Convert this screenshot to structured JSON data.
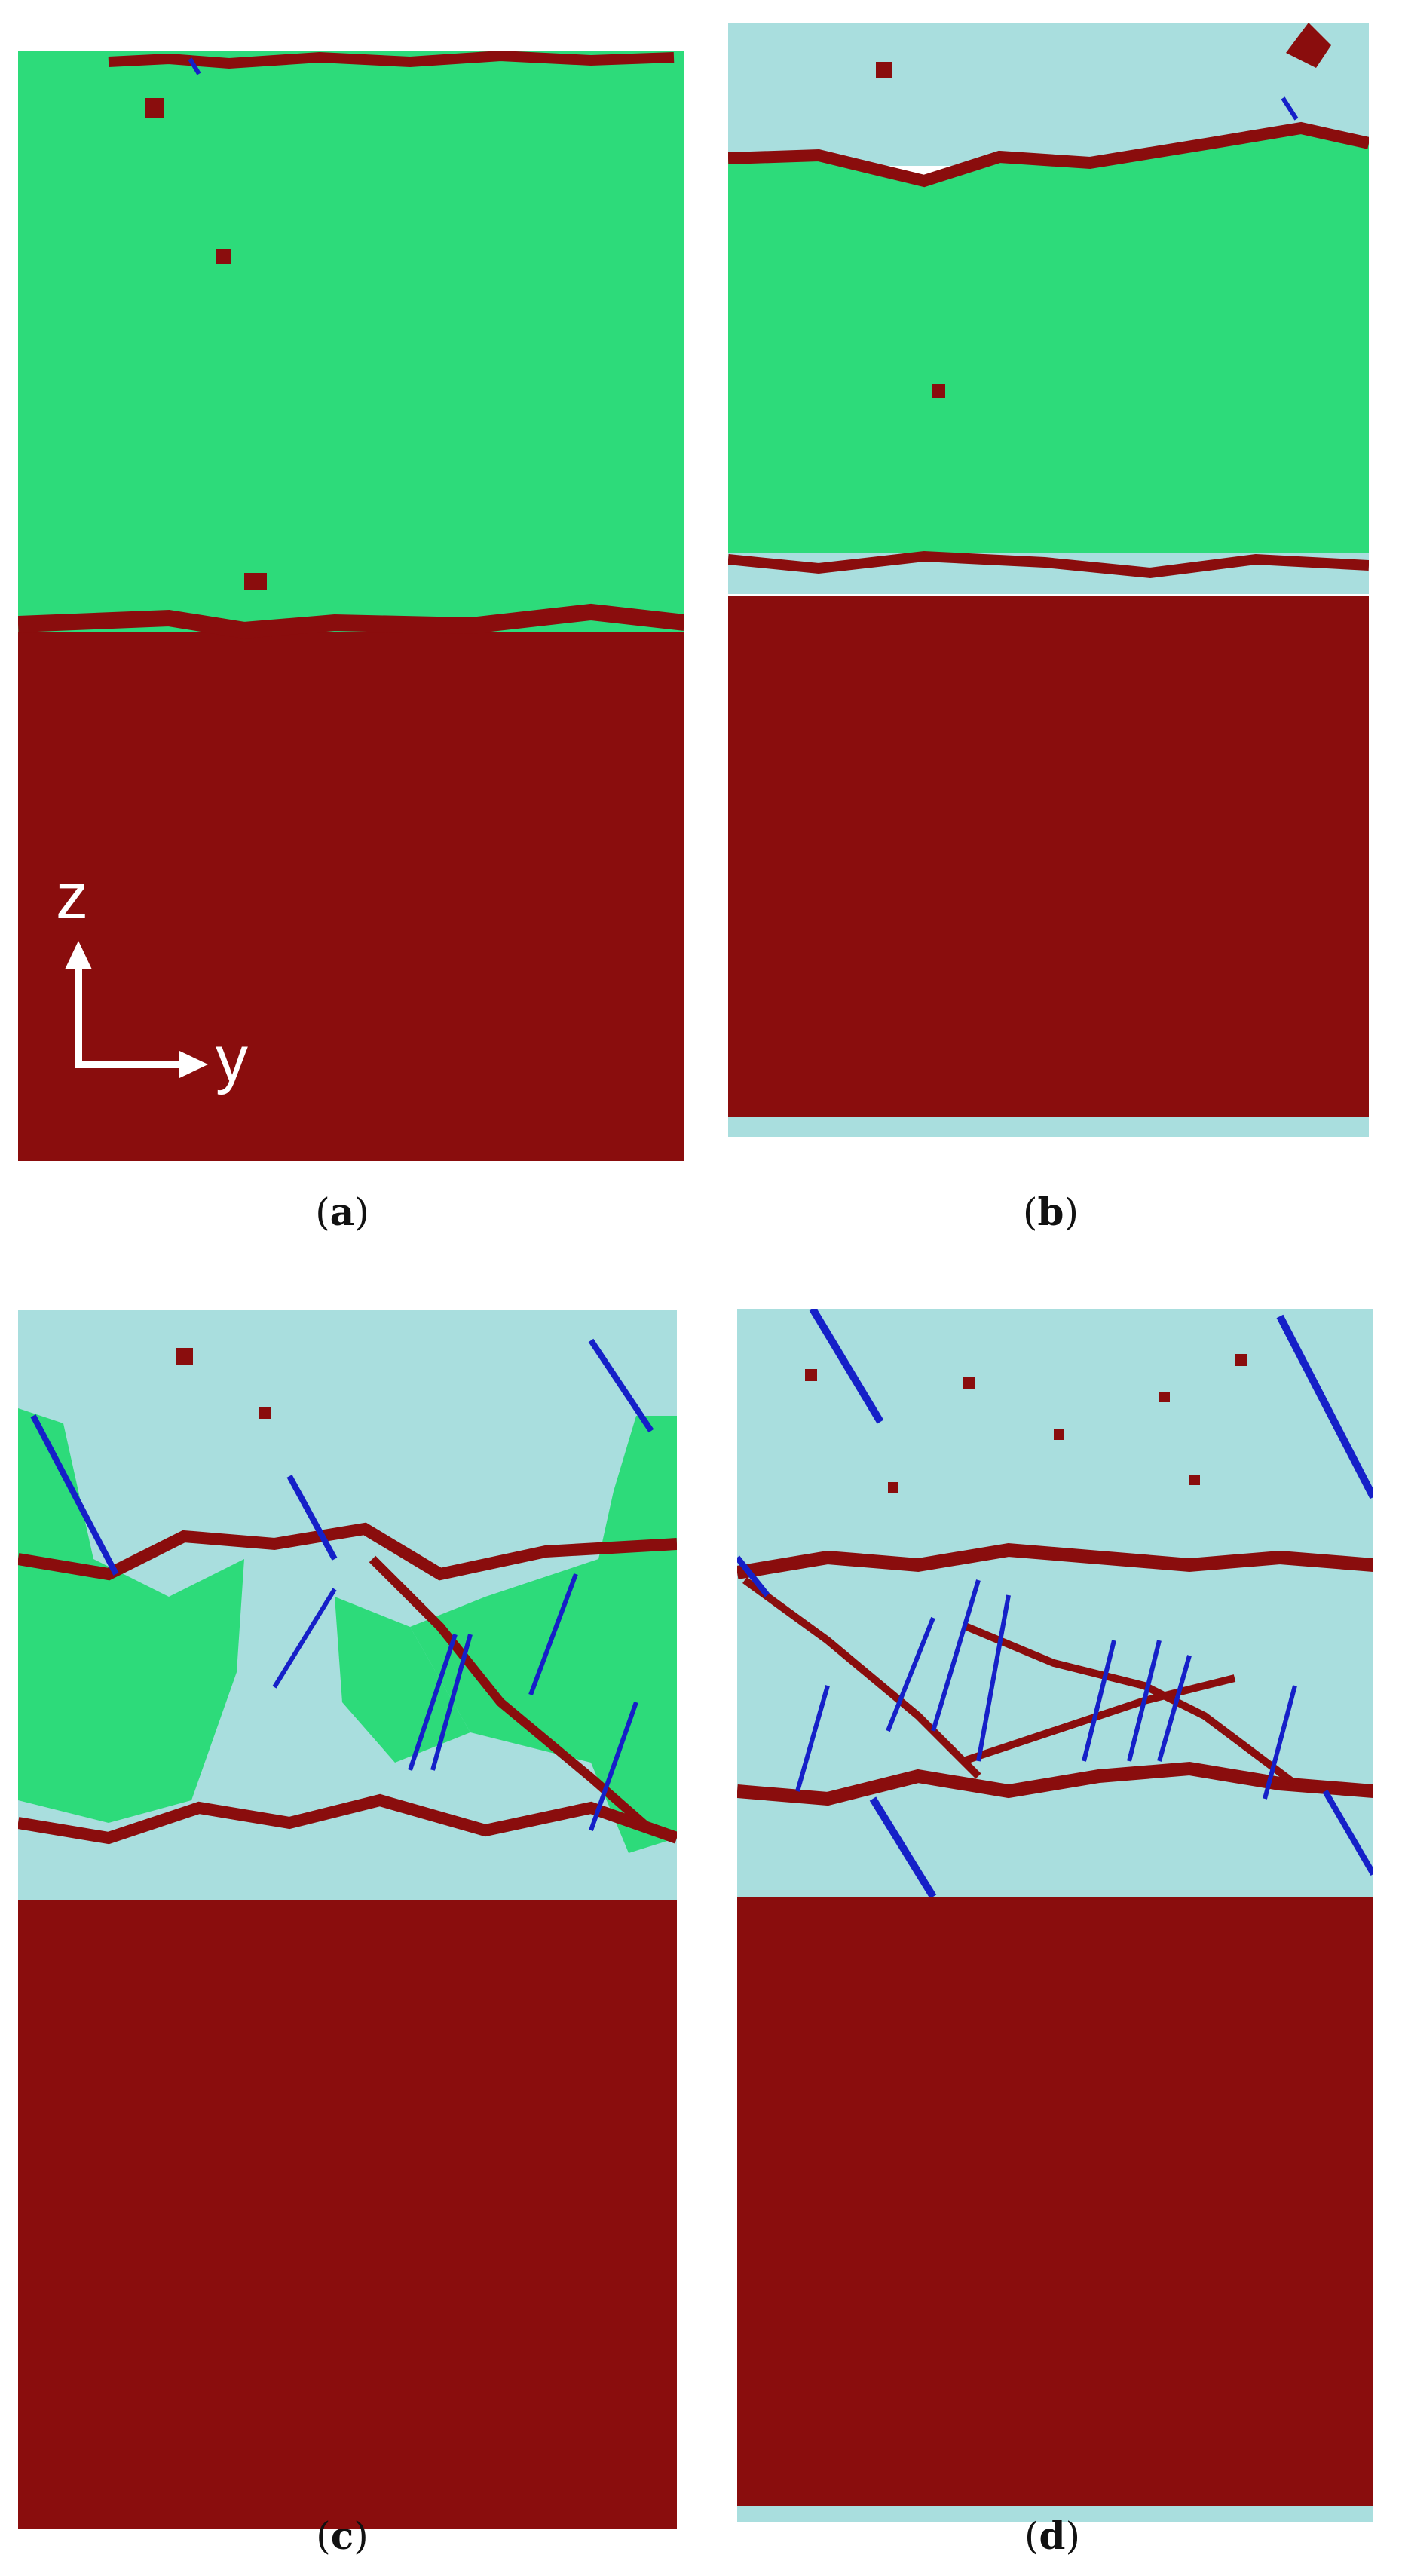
{
  "colors": {
    "green": "#2ddb7a",
    "cyan": "#a9dede",
    "red": "#8a0d0d",
    "blue": "#1520c8",
    "axis": "#ffffff"
  },
  "axes": {
    "z_label": "z",
    "y_label": "y"
  },
  "captions": {
    "a": {
      "open": "(",
      "letter": "a",
      "close": ")"
    },
    "b": {
      "open": "(",
      "letter": "b",
      "close": ")"
    },
    "c": {
      "open": "(",
      "letter": "c",
      "close": ")"
    },
    "d": {
      "open": "(",
      "letter": "d",
      "close": ")"
    }
  }
}
